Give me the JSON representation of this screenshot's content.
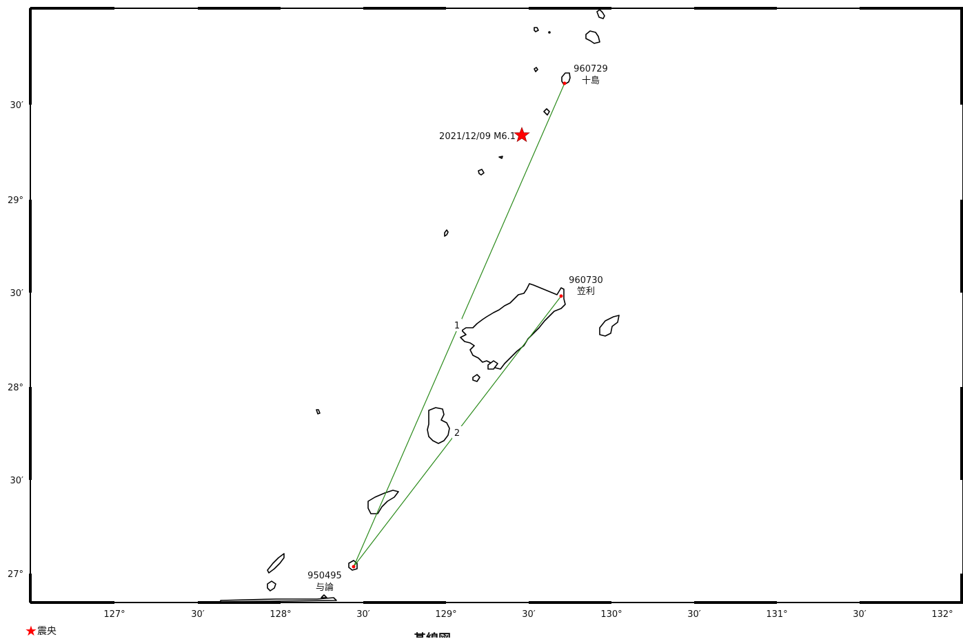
{
  "map": {
    "lat_labels": [
      {
        "text": "30′"
      },
      {
        "text": "29°"
      },
      {
        "text": "30′"
      },
      {
        "text": "28°"
      },
      {
        "text": "30′"
      },
      {
        "text": "27°"
      }
    ],
    "lon_labels": [
      {
        "text": "127°"
      },
      {
        "text": "30′"
      },
      {
        "text": "128°"
      },
      {
        "text": "30′"
      },
      {
        "text": "129°"
      },
      {
        "text": "30′"
      },
      {
        "text": "130°"
      },
      {
        "text": "30′"
      },
      {
        "text": "131°"
      },
      {
        "text": "30′"
      },
      {
        "text": "132°"
      }
    ],
    "stations": [
      {
        "id": "960729",
        "name": "十島"
      },
      {
        "id": "960730",
        "name": "笠利"
      },
      {
        "id": "950495",
        "name": "与論"
      }
    ],
    "epicenter_label": "2021/12/09 M6.1",
    "baselines": [
      {
        "label": "1"
      },
      {
        "label": "2"
      }
    ],
    "colors": {
      "baseline": "#2a8a1a",
      "epicenter": "#ff0000",
      "station": "#ff0000"
    }
  },
  "legend": {
    "icon": "star-icon",
    "label": "震央"
  },
  "footer_partial": "基線図"
}
